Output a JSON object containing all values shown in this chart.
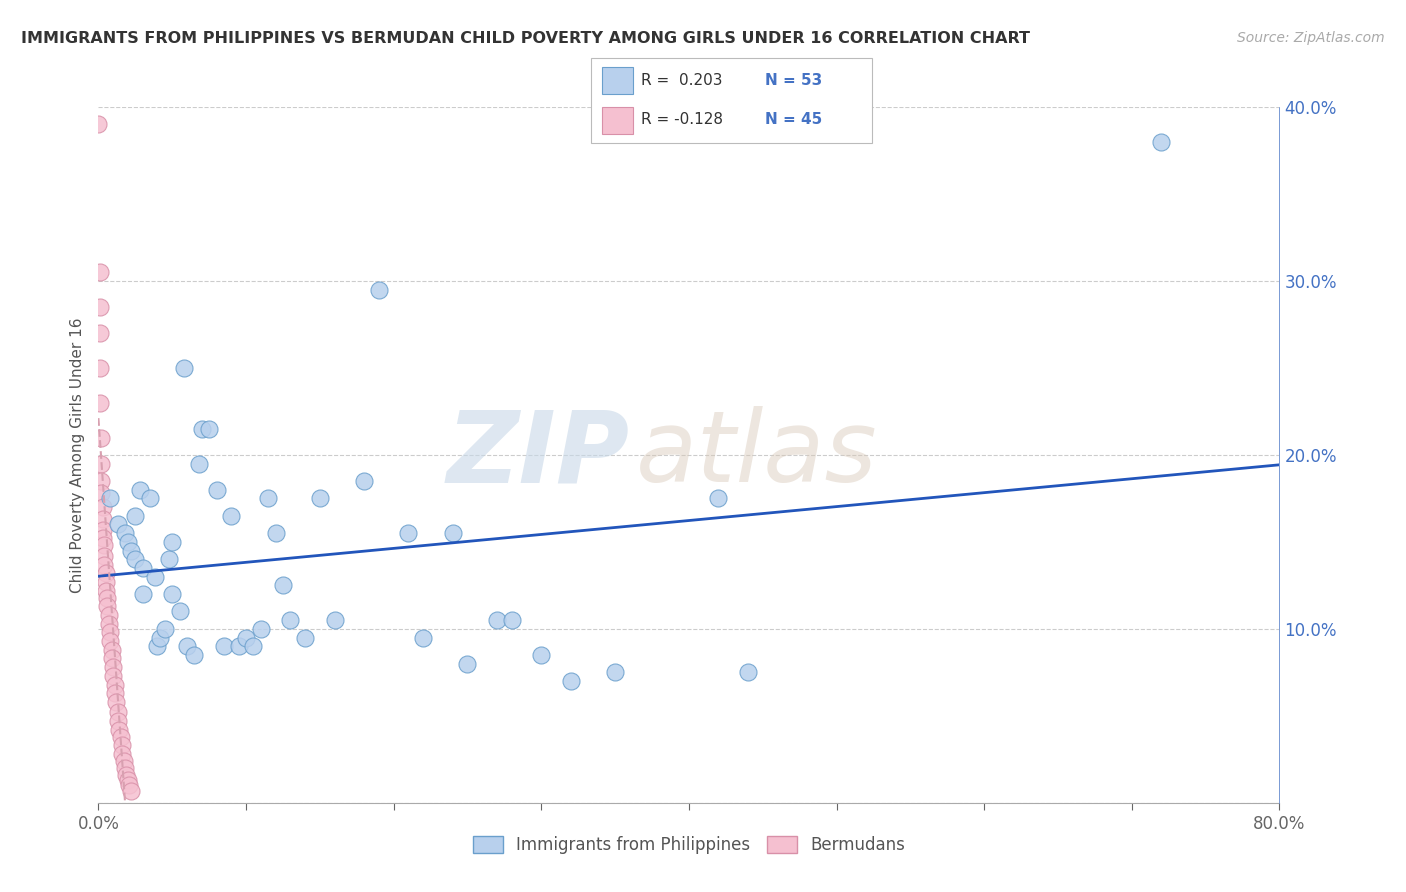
{
  "title": "IMMIGRANTS FROM PHILIPPINES VS BERMUDAN CHILD POVERTY AMONG GIRLS UNDER 16 CORRELATION CHART",
  "source": "Source: ZipAtlas.com",
  "ylabel": "Child Poverty Among Girls Under 16",
  "legend_label_blue": "Immigrants from Philippines",
  "legend_label_pink": "Bermudans",
  "xlim": [
    0,
    0.8
  ],
  "ylim": [
    0,
    0.4
  ],
  "blue_scatter_face": "#B8D0ED",
  "blue_scatter_edge": "#6A9FCC",
  "pink_scatter_face": "#F5C0D0",
  "pink_scatter_edge": "#D890A8",
  "blue_line_color": "#2255BB",
  "pink_line_color": "#D8A0B0",
  "watermark_zip": "ZIP",
  "watermark_atlas": "atlas",
  "background_color": "#FFFFFF",
  "blue_x": [
    0.008,
    0.013,
    0.018,
    0.02,
    0.022,
    0.025,
    0.025,
    0.028,
    0.03,
    0.03,
    0.035,
    0.038,
    0.04,
    0.042,
    0.045,
    0.048,
    0.05,
    0.05,
    0.055,
    0.058,
    0.06,
    0.065,
    0.068,
    0.07,
    0.075,
    0.08,
    0.085,
    0.09,
    0.095,
    0.1,
    0.105,
    0.11,
    0.115,
    0.12,
    0.125,
    0.13,
    0.14,
    0.15,
    0.16,
    0.18,
    0.19,
    0.21,
    0.22,
    0.24,
    0.25,
    0.27,
    0.28,
    0.3,
    0.32,
    0.35,
    0.42,
    0.44,
    0.72
  ],
  "blue_y": [
    0.175,
    0.16,
    0.155,
    0.15,
    0.145,
    0.165,
    0.14,
    0.18,
    0.12,
    0.135,
    0.175,
    0.13,
    0.09,
    0.095,
    0.1,
    0.14,
    0.12,
    0.15,
    0.11,
    0.25,
    0.09,
    0.085,
    0.195,
    0.215,
    0.215,
    0.18,
    0.09,
    0.165,
    0.09,
    0.095,
    0.09,
    0.1,
    0.175,
    0.155,
    0.125,
    0.105,
    0.095,
    0.175,
    0.105,
    0.185,
    0.295,
    0.155,
    0.095,
    0.155,
    0.08,
    0.105,
    0.105,
    0.085,
    0.07,
    0.075,
    0.175,
    0.075,
    0.38
  ],
  "pink_x": [
    0.0,
    0.001,
    0.001,
    0.001,
    0.001,
    0.001,
    0.002,
    0.002,
    0.002,
    0.002,
    0.003,
    0.003,
    0.003,
    0.003,
    0.004,
    0.004,
    0.004,
    0.005,
    0.005,
    0.005,
    0.006,
    0.006,
    0.007,
    0.007,
    0.008,
    0.008,
    0.009,
    0.009,
    0.01,
    0.01,
    0.011,
    0.011,
    0.012,
    0.013,
    0.013,
    0.014,
    0.015,
    0.016,
    0.016,
    0.017,
    0.018,
    0.019,
    0.02,
    0.021,
    0.022
  ],
  "pink_y": [
    0.39,
    0.305,
    0.285,
    0.27,
    0.25,
    0.23,
    0.21,
    0.195,
    0.185,
    0.178,
    0.17,
    0.163,
    0.157,
    0.152,
    0.148,
    0.142,
    0.137,
    0.132,
    0.127,
    0.122,
    0.118,
    0.113,
    0.108,
    0.103,
    0.098,
    0.093,
    0.088,
    0.083,
    0.078,
    0.073,
    0.068,
    0.063,
    0.058,
    0.052,
    0.047,
    0.042,
    0.038,
    0.033,
    0.028,
    0.024,
    0.02,
    0.016,
    0.013,
    0.01,
    0.007
  ]
}
